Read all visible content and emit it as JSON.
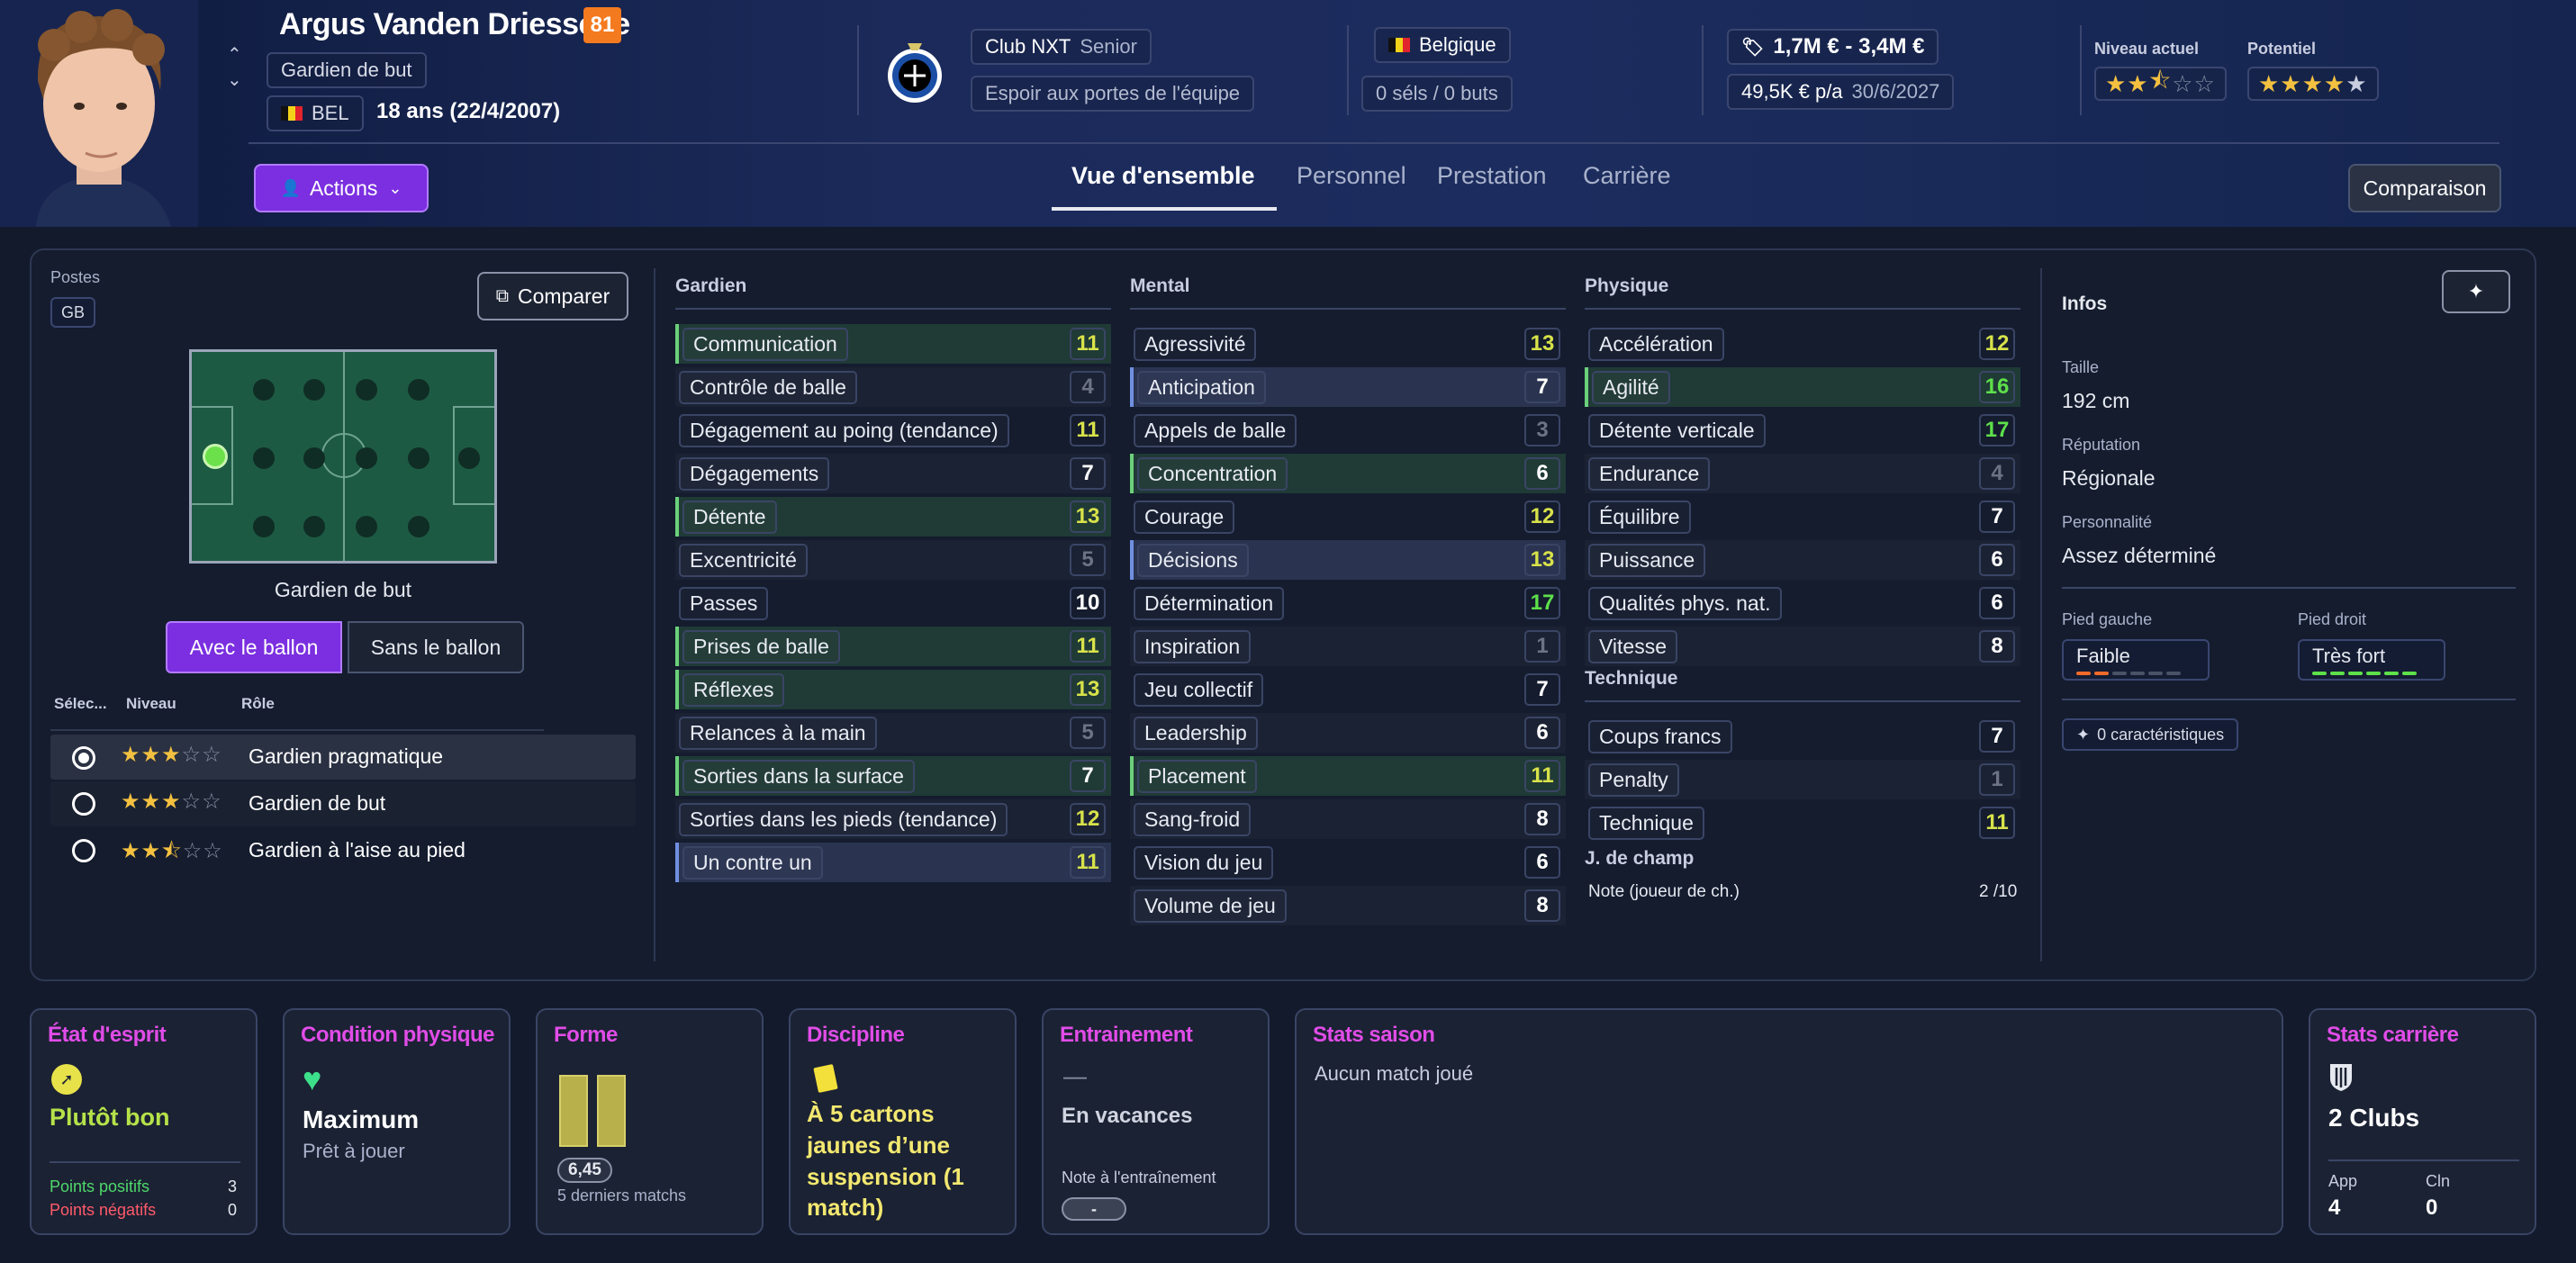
{
  "player": {
    "name": "Argus Vanden Driessche",
    "rating": "81",
    "position": "Gardien de but",
    "nationality": "BEL",
    "age": "18 ans (22/4/2007)",
    "club": "Club NXT",
    "club_level": "Senior",
    "club_status": "Espoir aux portes de l'équipe",
    "country": "Belgique",
    "intl": "0 séls / 0 buts",
    "value": "1,7M € - 3,4M €",
    "wage": "49,5K € p/a",
    "contract": "30/6/2027",
    "current_ability_label": "Niveau actuel",
    "potential_label": "Potentiel",
    "current_stars": 2.5,
    "potential_stars": 4.5
  },
  "actions_label": "Actions",
  "tabs": [
    "Vue d'ensemble",
    "Personnel",
    "Prestation",
    "Carrière"
  ],
  "compare_label": "Comparaison",
  "positions": {
    "label": "Postes",
    "code": "GB",
    "compare_btn": "Comparer",
    "pitch_caption": "Gardien de but",
    "with_ball": "Avec le ballon",
    "without_ball": "Sans le ballon",
    "cols": [
      "Sélec...",
      "Niveau",
      "Rôle"
    ],
    "roles": [
      {
        "name": "Gardien pragmatique",
        "stars": 3,
        "selected": true
      },
      {
        "name": "Gardien de but",
        "stars": 3,
        "selected": false
      },
      {
        "name": "Gardien à l'aise au pied",
        "stars": 2.5,
        "selected": false
      }
    ]
  },
  "groups": {
    "gardien": {
      "title": "Gardien",
      "attrs": [
        {
          "n": "Communication",
          "v": "11",
          "h": "green"
        },
        {
          "n": "Contrôle de balle",
          "v": "4",
          "h": ""
        },
        {
          "n": "Dégagement au poing (tendance)",
          "v": "11",
          "h": ""
        },
        {
          "n": "Dégagements",
          "v": "7",
          "h": ""
        },
        {
          "n": "Détente",
          "v": "13",
          "h": "green"
        },
        {
          "n": "Excentricité",
          "v": "5",
          "h": ""
        },
        {
          "n": "Passes",
          "v": "10",
          "h": ""
        },
        {
          "n": "Prises de balle",
          "v": "11",
          "h": "green"
        },
        {
          "n": "Réflexes",
          "v": "13",
          "h": "green"
        },
        {
          "n": "Relances à la main",
          "v": "5",
          "h": ""
        },
        {
          "n": "Sorties dans la surface",
          "v": "7",
          "h": "green"
        },
        {
          "n": "Sorties dans les pieds (tendance)",
          "v": "12",
          "h": ""
        },
        {
          "n": "Un contre un",
          "v": "11",
          "h": "blue"
        }
      ]
    },
    "mental": {
      "title": "Mental",
      "attrs": [
        {
          "n": "Agressivité",
          "v": "13",
          "h": ""
        },
        {
          "n": "Anticipation",
          "v": "7",
          "h": "blue"
        },
        {
          "n": "Appels de balle",
          "v": "3",
          "h": ""
        },
        {
          "n": "Concentration",
          "v": "6",
          "h": "green"
        },
        {
          "n": "Courage",
          "v": "12",
          "h": ""
        },
        {
          "n": "Décisions",
          "v": "13",
          "h": "blue"
        },
        {
          "n": "Détermination",
          "v": "17",
          "h": ""
        },
        {
          "n": "Inspiration",
          "v": "1",
          "h": ""
        },
        {
          "n": "Jeu collectif",
          "v": "7",
          "h": ""
        },
        {
          "n": "Leadership",
          "v": "6",
          "h": ""
        },
        {
          "n": "Placement",
          "v": "11",
          "h": "green"
        },
        {
          "n": "Sang-froid",
          "v": "8",
          "h": ""
        },
        {
          "n": "Vision du jeu",
          "v": "6",
          "h": ""
        },
        {
          "n": "Volume de jeu",
          "v": "8",
          "h": ""
        }
      ]
    },
    "physique": {
      "title": "Physique",
      "attrs": [
        {
          "n": "Accélération",
          "v": "12",
          "h": ""
        },
        {
          "n": "Agilité",
          "v": "16",
          "h": "green"
        },
        {
          "n": "Détente verticale",
          "v": "17",
          "h": ""
        },
        {
          "n": "Endurance",
          "v": "4",
          "h": ""
        },
        {
          "n": "Équilibre",
          "v": "7",
          "h": ""
        },
        {
          "n": "Puissance",
          "v": "6",
          "h": ""
        },
        {
          "n": "Qualités phys. nat.",
          "v": "6",
          "h": ""
        },
        {
          "n": "Vitesse",
          "v": "8",
          "h": ""
        }
      ]
    },
    "technique": {
      "title": "Technique",
      "attrs": [
        {
          "n": "Coups francs",
          "v": "7",
          "h": ""
        },
        {
          "n": "Penalty",
          "v": "1",
          "h": ""
        },
        {
          "n": "Technique",
          "v": "11",
          "h": ""
        }
      ]
    },
    "champ": {
      "title": "J. de champ",
      "note_label": "Note (joueur de ch.)",
      "note_value": "2 /10"
    }
  },
  "infos": {
    "title": "Infos",
    "height_label": "Taille",
    "height": "192 cm",
    "rep_label": "Réputation",
    "rep": "Régionale",
    "pers_label": "Personnalité",
    "pers": "Assez déterminé",
    "left_foot_label": "Pied gauche",
    "left_foot": "Faible",
    "left_foot_level": 2,
    "right_foot_label": "Pied droit",
    "right_foot": "Très fort",
    "right_foot_level": 6,
    "traits": "0 caractéristiques"
  },
  "cards": {
    "morale": {
      "title": "État d'esprit",
      "value": "Plutôt bon",
      "pos_label": "Points positifs",
      "pos": "3",
      "neg_label": "Points négatifs",
      "neg": "0"
    },
    "condition": {
      "title": "Condition physique",
      "value": "Maximum",
      "sub": "Prêt à jouer"
    },
    "form": {
      "title": "Forme",
      "avg": "6,45",
      "sub": "5 derniers matchs"
    },
    "discipline": {
      "title": "Discipline",
      "text": "À 5 cartons jaunes d’une suspension (1 match)"
    },
    "training": {
      "title": "Entrainement",
      "dash": "—",
      "value": "En vacances",
      "note_label": "Note à l'entraînement",
      "note": "-"
    },
    "season": {
      "title": "Stats saison",
      "text": "Aucun match joué"
    },
    "career": {
      "title": "Stats carrière",
      "clubs": "2 Clubs",
      "app_label": "App",
      "app": "4",
      "cln_label": "Cln",
      "cln": "0"
    }
  },
  "colors": {
    "accent": "#7b2fe0",
    "green": "#8fe04a",
    "yellow": "#e7e24a",
    "grey": "#6c7385",
    "brand": "#e14ce8"
  }
}
